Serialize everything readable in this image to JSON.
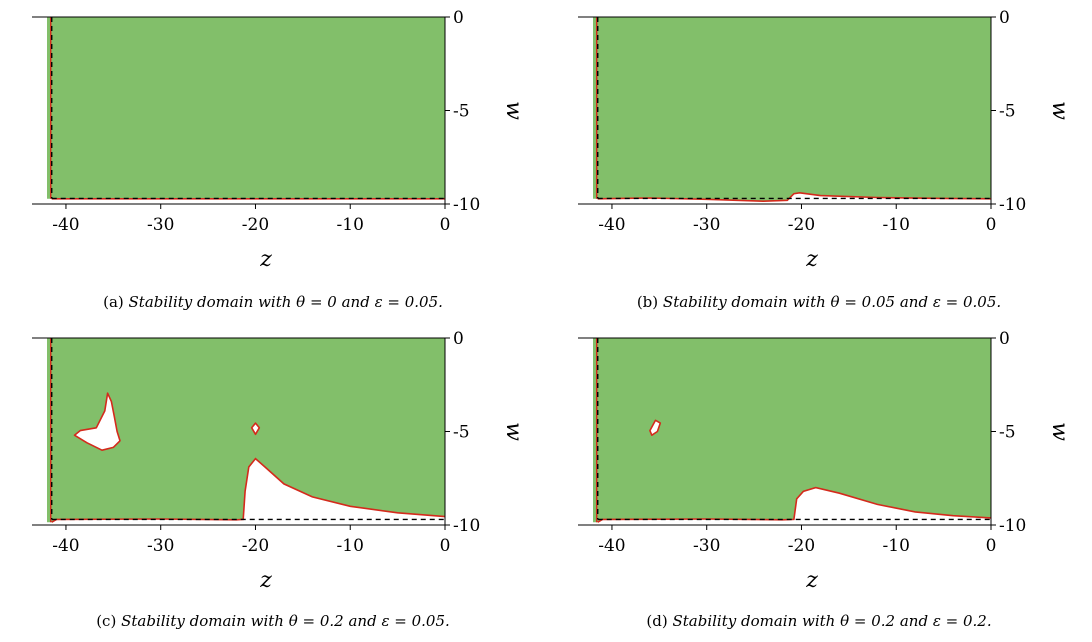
{
  "chart_data": [
    {
      "type": "area",
      "panel_label": "(a)",
      "caption": "Stability domain with θ = 0 and ε = 0.05.",
      "theta": 0,
      "epsilon": 0.05,
      "xlabel": "z",
      "ylabel": "w",
      "xlim": [
        -42,
        0
      ],
      "ylim": [
        -10,
        0
      ],
      "xticks": [
        "-40",
        "-30",
        "-20",
        "-10",
        "0"
      ],
      "yticks": [
        "0",
        "-5",
        "-10"
      ],
      "fill_color": "#82bf6a",
      "boundary_color": "#d42a1c",
      "dashed_boundary": {
        "z": -41.5,
        "w": -9.7
      },
      "bottom_boundary": [
        [
          -41.5,
          -9.72
        ],
        [
          0,
          -9.72
        ]
      ],
      "islands": []
    },
    {
      "type": "area",
      "panel_label": "(b)",
      "caption": "Stability domain with θ = 0.05 and ε = 0.05.",
      "theta": 0.05,
      "epsilon": 0.05,
      "xlabel": "z",
      "ylabel": "w",
      "xlim": [
        -42,
        0
      ],
      "ylim": [
        -10,
        0
      ],
      "xticks": [
        "-40",
        "-30",
        "-20",
        "-10",
        "0"
      ],
      "yticks": [
        "0",
        "-5",
        "-10"
      ],
      "fill_color": "#82bf6a",
      "boundary_color": "#d42a1c",
      "dashed_boundary": {
        "z": -41.5,
        "w": -9.7
      },
      "bottom_boundary": [
        [
          -41.5,
          -9.72
        ],
        [
          -36,
          -9.68
        ],
        [
          -30,
          -9.75
        ],
        [
          -24,
          -9.85
        ],
        [
          -21.5,
          -9.8
        ],
        [
          -20.8,
          -9.45
        ],
        [
          -20.2,
          -9.4
        ],
        [
          -18,
          -9.55
        ],
        [
          -12,
          -9.65
        ],
        [
          -5,
          -9.7
        ],
        [
          0,
          -9.72
        ]
      ],
      "islands": []
    },
    {
      "type": "area",
      "panel_label": "(c)",
      "caption": "Stability domain with θ = 0.2 and ε = 0.05.",
      "theta": 0.2,
      "epsilon": 0.05,
      "xlabel": "z",
      "ylabel": "w",
      "xlim": [
        -42,
        0
      ],
      "ylim": [
        -10,
        0
      ],
      "xticks": [
        "-40",
        "-30",
        "-20",
        "-10",
        "0"
      ],
      "yticks": [
        "0",
        "-5",
        "-10"
      ],
      "fill_color": "#82bf6a",
      "boundary_color": "#d42a1c",
      "dashed_boundary": {
        "z": -41.5,
        "w": -9.7
      },
      "bottom_boundary": [
        [
          -41.5,
          -9.85
        ],
        [
          -41,
          -9.7
        ],
        [
          -30,
          -9.68
        ],
        [
          -22,
          -9.72
        ],
        [
          -21.3,
          -9.7
        ],
        [
          -21.1,
          -8.2
        ],
        [
          -20.7,
          -6.9
        ],
        [
          -20,
          -6.45
        ],
        [
          -19,
          -6.9
        ],
        [
          -17,
          -7.8
        ],
        [
          -14,
          -8.5
        ],
        [
          -10,
          -9.0
        ],
        [
          -5,
          -9.35
        ],
        [
          0,
          -9.55
        ]
      ],
      "islands": [
        [
          [
            -36.2,
            -6.0
          ],
          [
            -37.8,
            -5.6
          ],
          [
            -39.1,
            -5.2
          ],
          [
            -38.5,
            -4.95
          ],
          [
            -36.8,
            -4.8
          ],
          [
            -35.9,
            -3.9
          ],
          [
            -35.6,
            -2.95
          ],
          [
            -35.2,
            -3.4
          ],
          [
            -34.9,
            -4.2
          ],
          [
            -34.6,
            -5.0
          ],
          [
            -34.3,
            -5.5
          ],
          [
            -35.0,
            -5.85
          ]
        ],
        [
          [
            -20,
            -4.55
          ],
          [
            -19.6,
            -4.8
          ],
          [
            -20,
            -5.15
          ],
          [
            -20.4,
            -4.8
          ]
        ]
      ]
    },
    {
      "type": "area",
      "panel_label": "(d)",
      "caption": "Stability domain with θ = 0.2 and ε = 0.2.",
      "theta": 0.2,
      "epsilon": 0.2,
      "xlabel": "z",
      "ylabel": "w",
      "xlim": [
        -42,
        0
      ],
      "ylim": [
        -10,
        0
      ],
      "xticks": [
        "-40",
        "-30",
        "-20",
        "-10",
        "0"
      ],
      "yticks": [
        "0",
        "-5",
        "-10"
      ],
      "fill_color": "#82bf6a",
      "boundary_color": "#d42a1c",
      "dashed_boundary": {
        "z": -41.5,
        "w": -9.7
      },
      "bottom_boundary": [
        [
          -41.5,
          -9.85
        ],
        [
          -41,
          -9.7
        ],
        [
          -30,
          -9.68
        ],
        [
          -22,
          -9.72
        ],
        [
          -20.8,
          -9.7
        ],
        [
          -20.5,
          -8.6
        ],
        [
          -19.8,
          -8.2
        ],
        [
          -18.5,
          -8.0
        ],
        [
          -16,
          -8.3
        ],
        [
          -12,
          -8.9
        ],
        [
          -8,
          -9.3
        ],
        [
          -4,
          -9.5
        ],
        [
          0,
          -9.62
        ]
      ],
      "islands": [
        [
          [
            -35.4,
            -4.4
          ],
          [
            -34.9,
            -4.55
          ],
          [
            -35.2,
            -5.0
          ],
          [
            -35.8,
            -5.2
          ],
          [
            -36.0,
            -4.95
          ]
        ]
      ]
    }
  ]
}
